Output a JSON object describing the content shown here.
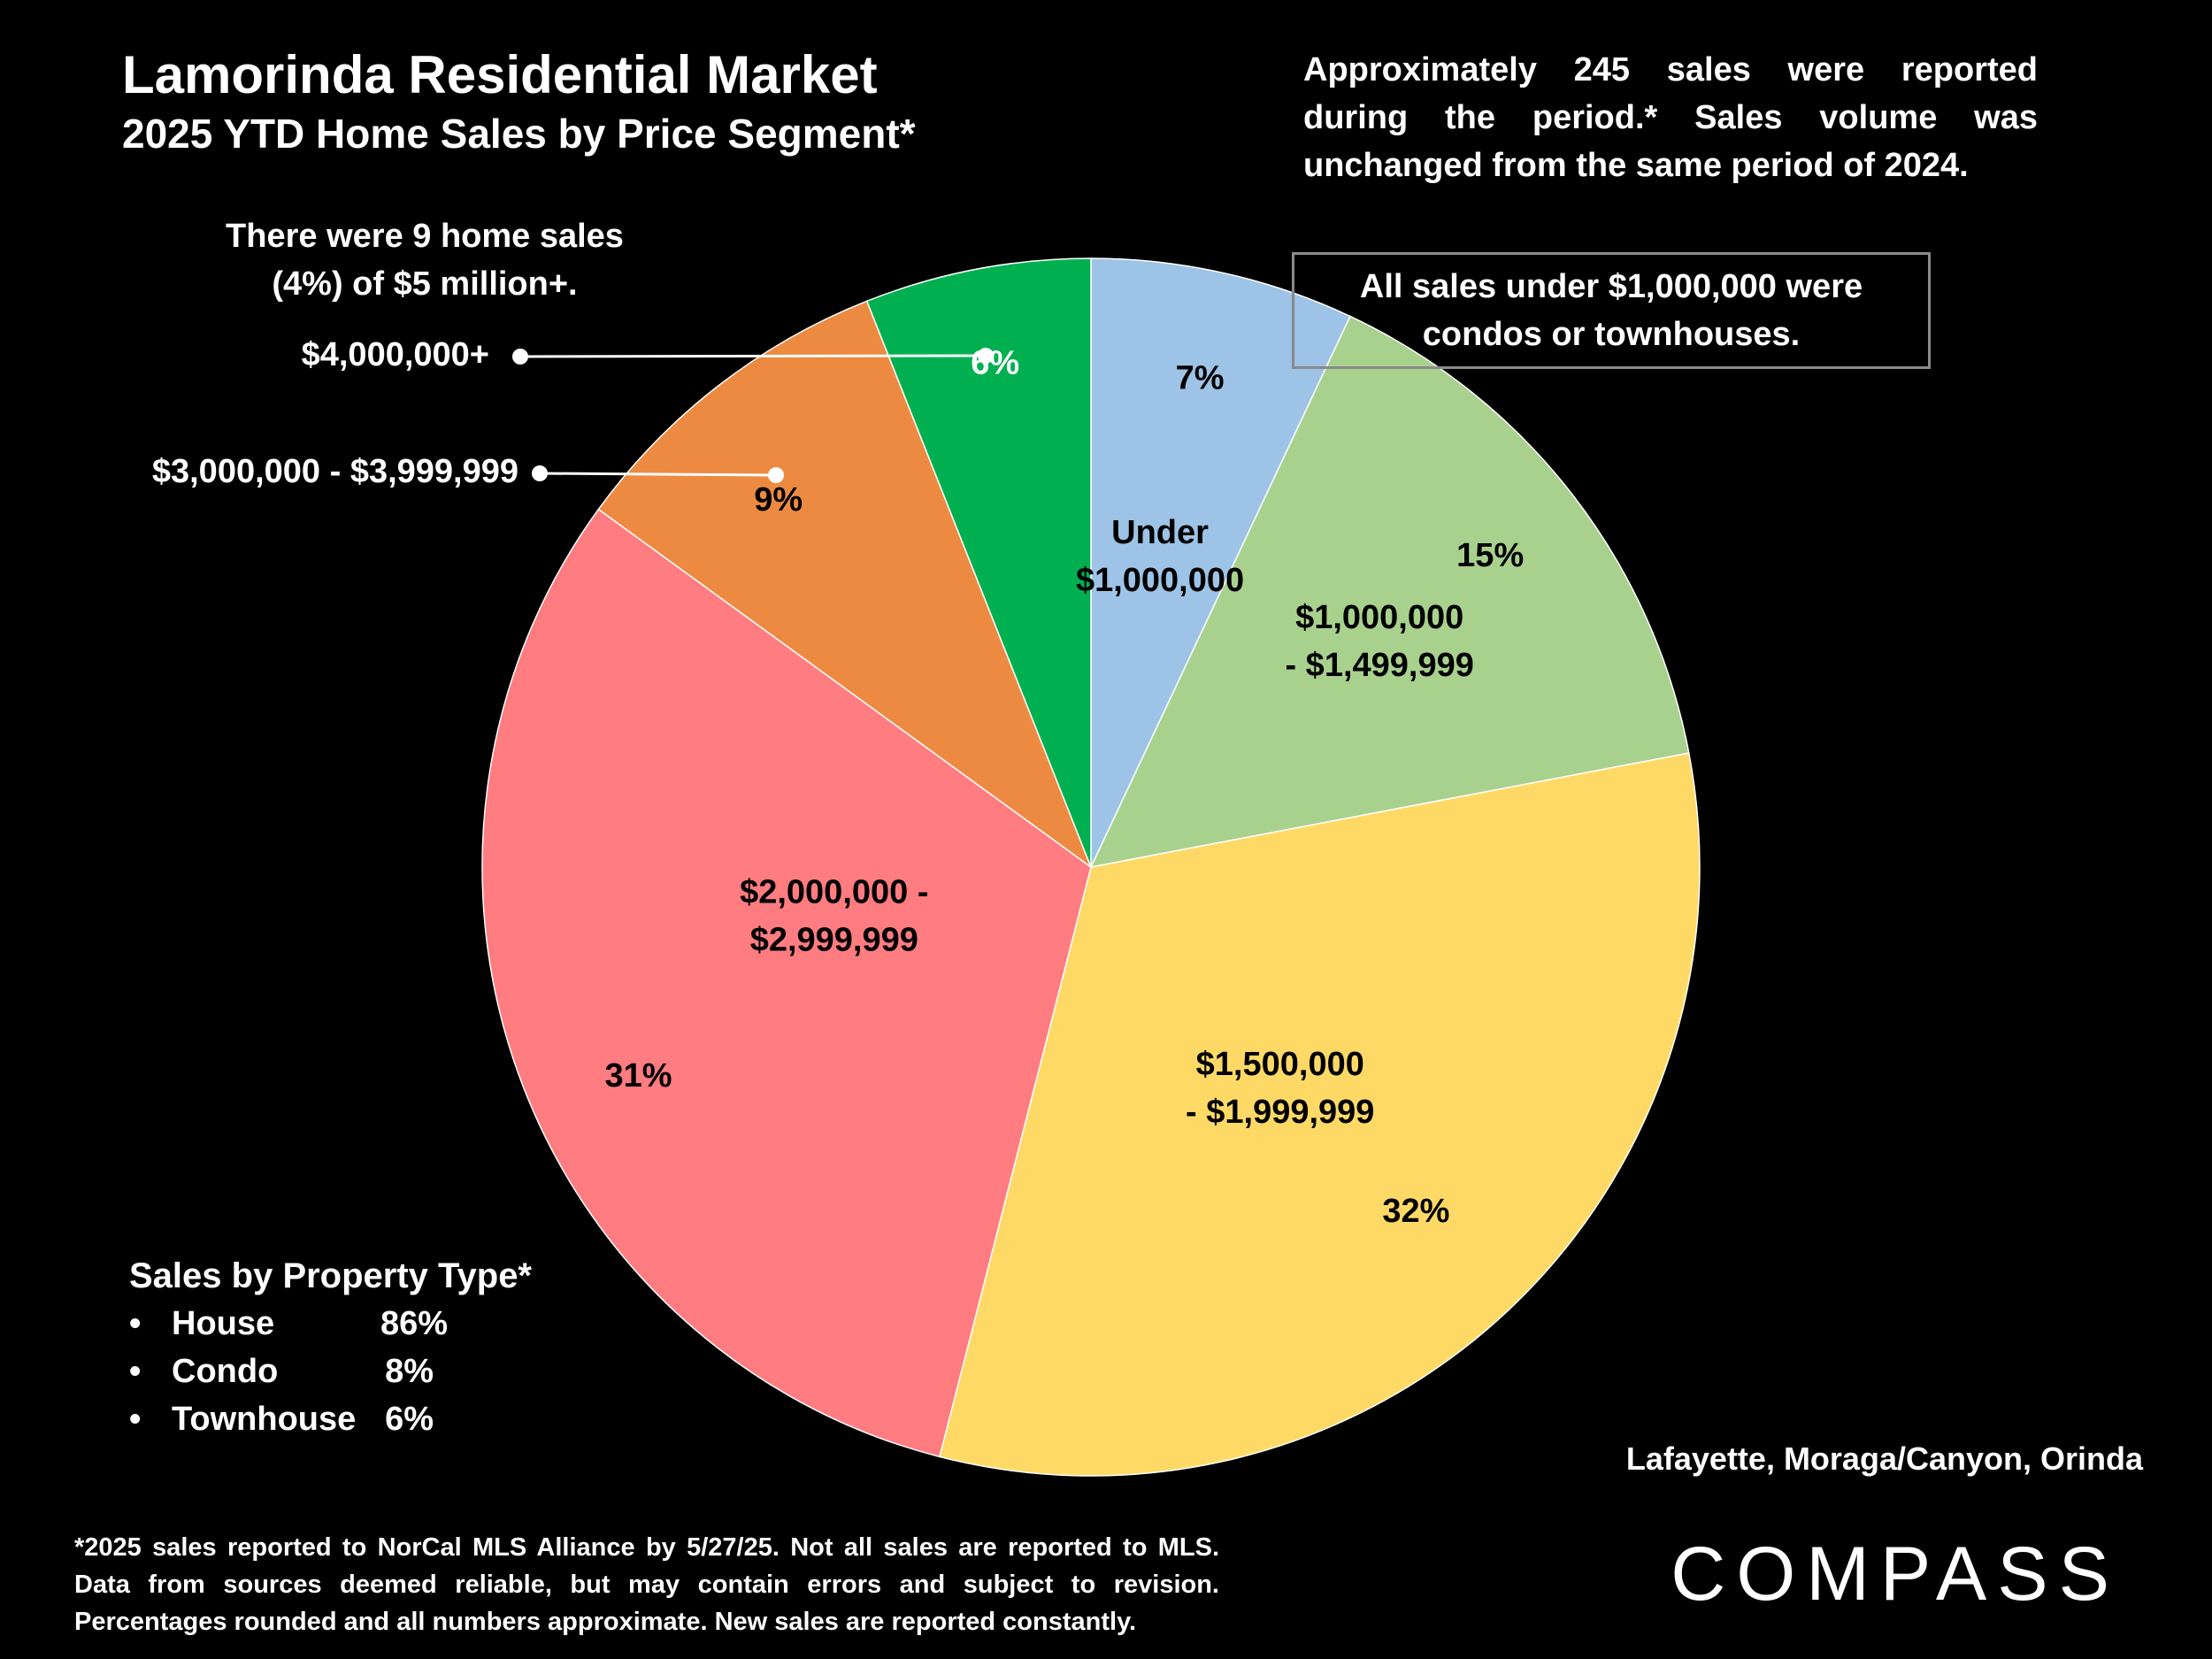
{
  "header": {
    "title": "Lamorinda Residential Market",
    "subtitle": "2025 YTD Home Sales by Price Segment*"
  },
  "notes": {
    "top_right_lines": [
      "Approximately 245 sales were reported",
      "during the period.* Sales volume was",
      "unchanged from the same period of 2024."
    ],
    "five_million_lines": [
      "There were 9 home sales",
      "(4%) of $5 million+."
    ],
    "condo_box_lines": [
      "All sales under $1,000,000 were",
      "condos or townhouses."
    ]
  },
  "property_type": {
    "title": "Sales by Property Type*",
    "items": [
      {
        "bullet": "•",
        "name": "House",
        "value": "86%"
      },
      {
        "bullet": "•",
        "name": "Condo",
        "value": "8%"
      },
      {
        "bullet": "•",
        "name": "Townhouse",
        "value": "6%"
      }
    ]
  },
  "region": "Lafayette, Moraga/Canyon, Orinda",
  "footnote": "*2025 sales reported to NorCal MLS Alliance by 5/27/25. Not all sales are reported to MLS. Data from sources deemed reliable, but may contain errors and subject to revision. Percentages rounded and all numbers approximate. New sales are reported constantly.",
  "brand": {
    "name": "COMPASS"
  },
  "chart_data": {
    "type": "pie",
    "start": "12 o'clock, clockwise",
    "slices": [
      {
        "label_lines": [
          "Under",
          "$1,000,000"
        ],
        "value": 7,
        "pct_label": "7%",
        "color": "#9dc3e6"
      },
      {
        "label_lines": [
          "$1,000,000",
          "- $1,499,999"
        ],
        "value": 15,
        "pct_label": "15%",
        "color": "#a9d18e"
      },
      {
        "label_lines": [
          "$1,500,000",
          "- $1,999,999"
        ],
        "value": 32,
        "pct_label": "32%",
        "color": "#ffd966"
      },
      {
        "label_lines": [
          "$2,000,000 -",
          "$2,999,999"
        ],
        "value": 31,
        "pct_label": "31%",
        "color": "#ff7c80"
      },
      {
        "label_lines": [
          "$3,000,000 - $3,999,999"
        ],
        "value": 9,
        "pct_label": "9%",
        "color": "#ed8a42"
      },
      {
        "label_lines": [
          "$4,000,000+"
        ],
        "value": 6,
        "pct_label": "6%",
        "color": "#00b050"
      }
    ]
  }
}
